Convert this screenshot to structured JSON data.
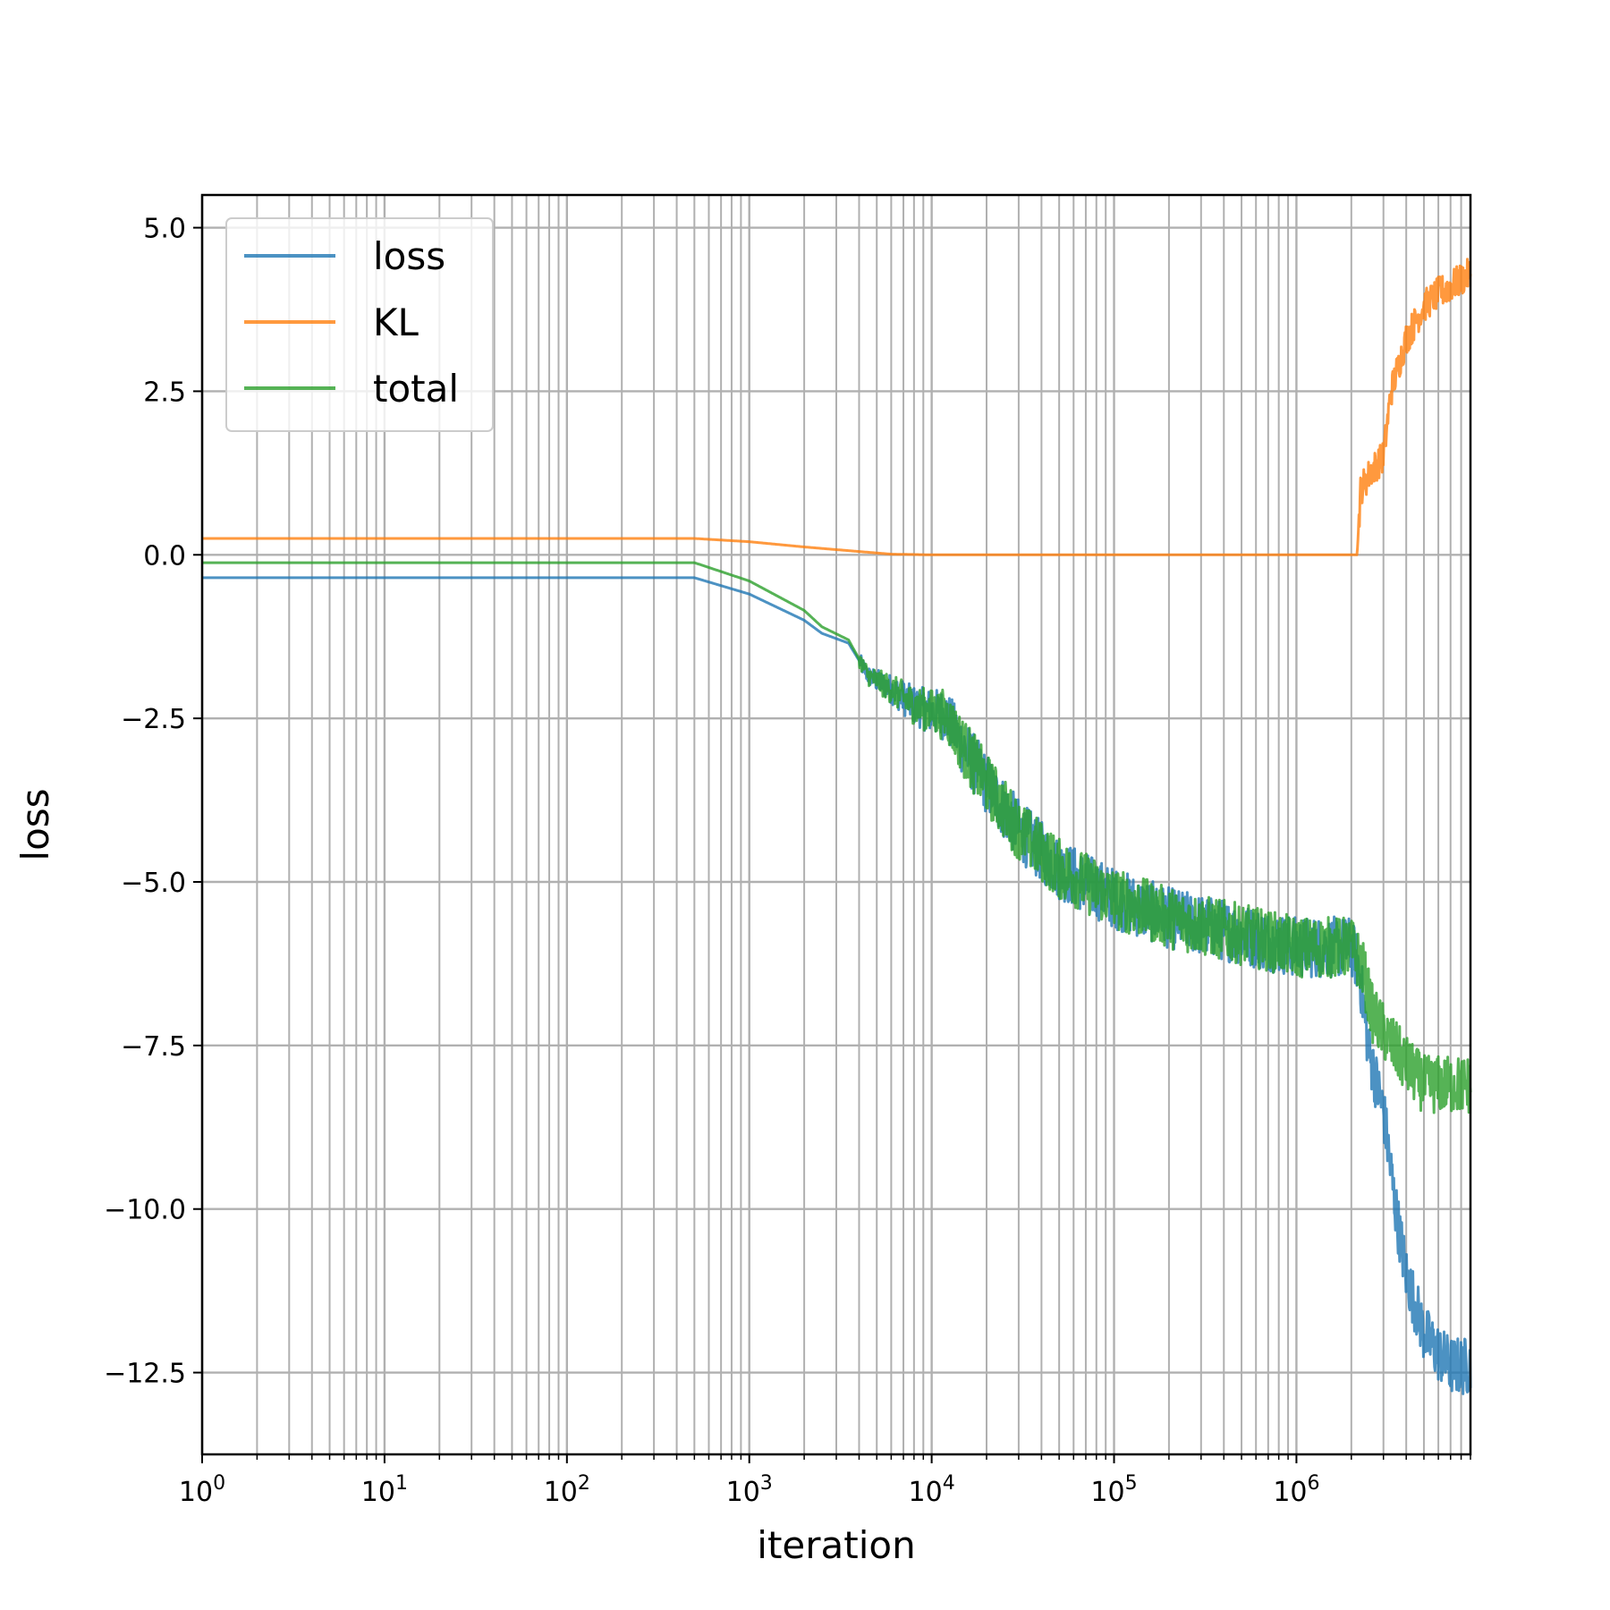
{
  "chart_data": {
    "type": "line",
    "title": "",
    "xlabel": "iteration",
    "ylabel": "loss",
    "xscale": "log",
    "xlim": [
      1,
      9000000
    ],
    "ylim": [
      -13.75,
      5.5
    ],
    "grid": true,
    "grid_minor": true,
    "legend_position": "upper-left",
    "x_tick_labels": [
      {
        "base": "10",
        "exp": "0"
      },
      {
        "base": "10",
        "exp": "1"
      },
      {
        "base": "10",
        "exp": "2"
      },
      {
        "base": "10",
        "exp": "3"
      },
      {
        "base": "10",
        "exp": "4"
      },
      {
        "base": "10",
        "exp": "5"
      },
      {
        "base": "10",
        "exp": "6"
      }
    ],
    "y_tick_labels": [
      "5.0",
      "2.5",
      "0.0",
      "−2.5",
      "−5.0",
      "−7.5",
      "−10.0",
      "−12.5"
    ],
    "series": [
      {
        "name": "loss",
        "color": "#1f77b4",
        "noise_from": 4000,
        "points": [
          [
            1,
            -0.35
          ],
          [
            500,
            -0.35
          ],
          [
            1000,
            -0.6
          ],
          [
            2000,
            -1.0
          ],
          [
            2500,
            -1.2
          ],
          [
            3500,
            -1.35
          ],
          [
            4500,
            -1.85
          ],
          [
            6000,
            -2.05
          ],
          [
            8000,
            -2.3
          ],
          [
            10000,
            -2.4
          ],
          [
            12000,
            -2.45
          ],
          [
            15000,
            -2.95
          ],
          [
            20000,
            -3.5
          ],
          [
            30000,
            -4.2
          ],
          [
            50000,
            -4.8
          ],
          [
            100000,
            -5.25
          ],
          [
            200000,
            -5.55
          ],
          [
            500000,
            -5.8
          ],
          [
            1000000,
            -6.0
          ],
          [
            2000000,
            -6.0
          ],
          [
            2200000,
            -6.3
          ],
          [
            2500000,
            -7.6
          ],
          [
            3000000,
            -8.5
          ],
          [
            3500000,
            -10.0
          ],
          [
            4000000,
            -11.0
          ],
          [
            5000000,
            -11.9
          ],
          [
            6000000,
            -12.2
          ],
          [
            7000000,
            -12.4
          ],
          [
            9000000,
            -12.4
          ]
        ]
      },
      {
        "name": "KL",
        "color": "#ff7f0e",
        "noise_from": 2200000,
        "points": [
          [
            1,
            0.25
          ],
          [
            500,
            0.25
          ],
          [
            1000,
            0.2
          ],
          [
            2000,
            0.12
          ],
          [
            4000,
            0.05
          ],
          [
            6000,
            0.01
          ],
          [
            10000,
            0.0
          ],
          [
            100000,
            0.0
          ],
          [
            1000000,
            0.0
          ],
          [
            2150000,
            0.0
          ],
          [
            2250000,
            1.0
          ],
          [
            2600000,
            1.3
          ],
          [
            3000000,
            1.5
          ],
          [
            3300000,
            2.5
          ],
          [
            4000000,
            3.3
          ],
          [
            5000000,
            3.8
          ],
          [
            6000000,
            4.0
          ],
          [
            7000000,
            4.1
          ],
          [
            9000000,
            4.3
          ]
        ]
      },
      {
        "name": "total",
        "color": "#2ca02c",
        "noise_from": 4000,
        "points": [
          [
            1,
            -0.12
          ],
          [
            500,
            -0.12
          ],
          [
            1000,
            -0.4
          ],
          [
            2000,
            -0.85
          ],
          [
            2500,
            -1.1
          ],
          [
            3500,
            -1.3
          ],
          [
            4500,
            -1.85
          ],
          [
            6000,
            -2.05
          ],
          [
            8000,
            -2.3
          ],
          [
            10000,
            -2.4
          ],
          [
            12000,
            -2.45
          ],
          [
            15000,
            -2.95
          ],
          [
            20000,
            -3.5
          ],
          [
            30000,
            -4.2
          ],
          [
            50000,
            -4.8
          ],
          [
            100000,
            -5.25
          ],
          [
            200000,
            -5.55
          ],
          [
            500000,
            -5.8
          ],
          [
            1000000,
            -6.0
          ],
          [
            2000000,
            -6.0
          ],
          [
            2300000,
            -6.3
          ],
          [
            2600000,
            -7.0
          ],
          [
            3000000,
            -7.3
          ],
          [
            4000000,
            -7.8
          ],
          [
            5000000,
            -8.1
          ],
          [
            9000000,
            -8.1
          ]
        ]
      }
    ]
  }
}
